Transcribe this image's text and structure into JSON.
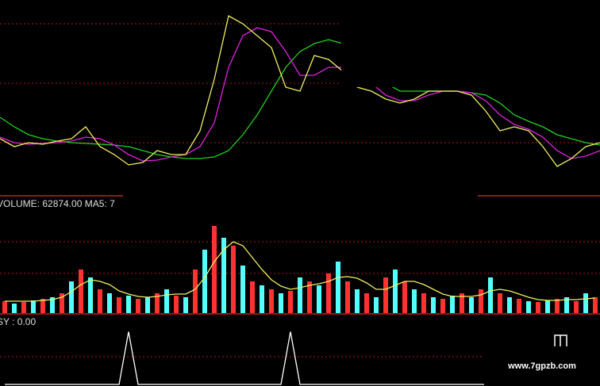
{
  "chart_data": [
    {
      "type": "line",
      "ylim": [
        0,
        245
      ],
      "series": [
        {
          "color": "#1fd21f",
          "values": [
            97,
            85,
            75,
            70,
            67,
            65,
            64,
            63,
            62,
            60,
            55,
            50,
            47,
            45,
            45,
            47,
            55,
            75,
            100,
            130,
            160,
            180,
            190,
            195,
            190,
            180,
            160,
            140,
            130,
            130,
            130,
            130,
            130,
            128,
            125,
            115,
            100,
            92,
            85,
            75,
            70,
            65,
            62
          ]
        },
        {
          "color": "#e020e0",
          "values": [
            72,
            65,
            63,
            64,
            65,
            67,
            72,
            70,
            62,
            50,
            42,
            43,
            47,
            50,
            60,
            90,
            160,
            200,
            210,
            205,
            180,
            150,
            150,
            160,
            160,
            150,
            140,
            125,
            118,
            118,
            125,
            130,
            130,
            128,
            118,
            100,
            88,
            82,
            72,
            55,
            45,
            48,
            55
          ]
        },
        {
          "color": "#f0f060",
          "values": [
            70,
            60,
            65,
            63,
            67,
            70,
            85,
            60,
            50,
            37,
            40,
            55,
            50,
            50,
            80,
            145,
            225,
            215,
            200,
            185,
            135,
            130,
            175,
            170,
            155,
            135,
            130,
            120,
            115,
            120,
            130,
            130,
            130,
            125,
            105,
            80,
            85,
            80,
            60,
            35,
            45,
            60,
            65
          ]
        }
      ]
    },
    {
      "type": "bar",
      "title": "VOLUME: 62874.00 MA5: 7",
      "ylim": [
        0,
        125
      ],
      "colors": [
        "#ff3232",
        "#54ffff"
      ],
      "values": [
        15,
        12,
        14,
        16,
        18,
        20,
        25,
        40,
        55,
        45,
        30,
        25,
        20,
        22,
        18,
        20,
        25,
        30,
        22,
        20,
        55,
        80,
        110,
        95,
        85,
        60,
        40,
        35,
        30,
        25,
        28,
        45,
        40,
        35,
        50,
        65,
        40,
        30,
        25,
        20,
        45,
        55,
        40,
        30,
        25,
        20,
        18,
        22,
        25,
        20,
        30,
        45,
        25,
        20,
        18,
        15,
        14,
        16,
        18,
        20,
        15,
        25,
        20
      ],
      "ma": {
        "color": "#f0f060",
        "values": [
          15,
          15,
          15,
          15,
          16,
          17,
          20,
          27,
          36,
          42,
          40,
          36,
          28,
          24,
          21,
          20,
          21,
          23,
          24,
          24,
          30,
          45,
          65,
          80,
          90,
          85,
          70,
          55,
          42,
          34,
          30,
          32,
          35,
          37,
          40,
          45,
          46,
          44,
          38,
          30,
          30,
          35,
          40,
          40,
          36,
          30,
          24,
          21,
          21,
          21,
          23,
          28,
          30,
          28,
          24,
          20,
          17,
          16,
          16,
          17,
          17,
          18,
          19
        ]
      }
    },
    {
      "type": "line",
      "title": "SY : 0.00",
      "ylim": [
        0,
        85
      ],
      "color": "#ffffff",
      "values": [
        0,
        0,
        0,
        0,
        0,
        0,
        0,
        0,
        0,
        0,
        0,
        0,
        0,
        65,
        0,
        0,
        0,
        0,
        0,
        0,
        0,
        0,
        0,
        0,
        0,
        0,
        0,
        0,
        0,
        0,
        65,
        0,
        0,
        0,
        0,
        0,
        0,
        0,
        0,
        0,
        0,
        0,
        0,
        0,
        0,
        0,
        0,
        0,
        0,
        0,
        0,
        0,
        0,
        0,
        0,
        0,
        0,
        0,
        0,
        0,
        0,
        0,
        0
      ]
    }
  ],
  "watermark": "www.7gpzb.com"
}
